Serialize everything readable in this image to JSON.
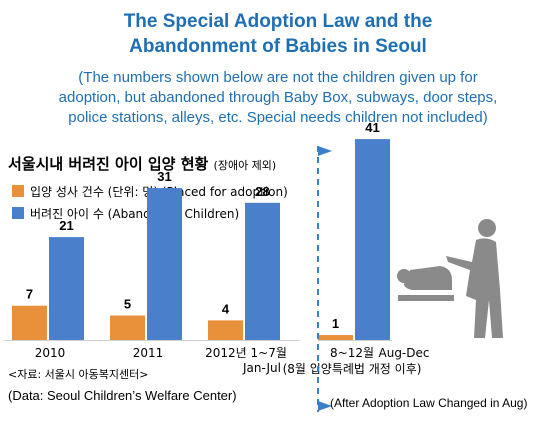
{
  "header": {
    "title_line1": "The Special Adoption Law and the",
    "title_line2": "Abandonment of Babies in Seoul",
    "subtitle_line1": "(The numbers shown below are not the children given up for",
    "subtitle_line2": "adoption, but abandoned through Baby Box, subways, door steps,",
    "subtitle_line3": "police stations, alleys, etc.  Special needs children not included)"
  },
  "chart_heading": {
    "main": "서울시내 버려진 아이 입양 현황",
    "note": "(장애아 제외)"
  },
  "legend": {
    "adopted": "입양 성사 건수 (단위: 명) (Placed for adoption)",
    "abandoned": "버려진 아이 수 (Abandoned Children)"
  },
  "source": {
    "korean": "<자료: 서울시 아동복지센터>",
    "english": "(Data: Seoul Children’s Welfare Center)"
  },
  "after_law_note": "(After Adoption Law Changed in Aug)",
  "colors": {
    "title": "#1f6fb4",
    "adopted": "#e8903a",
    "abandoned": "#4a7fcb",
    "divider": "#3a7fc8",
    "figure": "#8a8a8a"
  },
  "icons": [
    "caregiver-baby-changing-icon"
  ],
  "chart_data": {
    "type": "bar",
    "categories": [
      "2010",
      "2011",
      "2012년 1~7월",
      "8~12월"
    ],
    "category_sublabels": [
      "",
      "",
      "Jan-Jul",
      "Aug-Dec"
    ],
    "category_notes": [
      "",
      "",
      "",
      "(8월 입양특례법 개정 이후)"
    ],
    "series": [
      {
        "name": "입양 성사 건수 (Placed for adoption)",
        "values": [
          7,
          5,
          4,
          1
        ]
      },
      {
        "name": "버려진 아이 수 (Abandoned Children)",
        "values": [
          21,
          31,
          28,
          41
        ]
      }
    ],
    "ylim": [
      0,
      45
    ],
    "grid": false,
    "legend_position": "top-left"
  }
}
